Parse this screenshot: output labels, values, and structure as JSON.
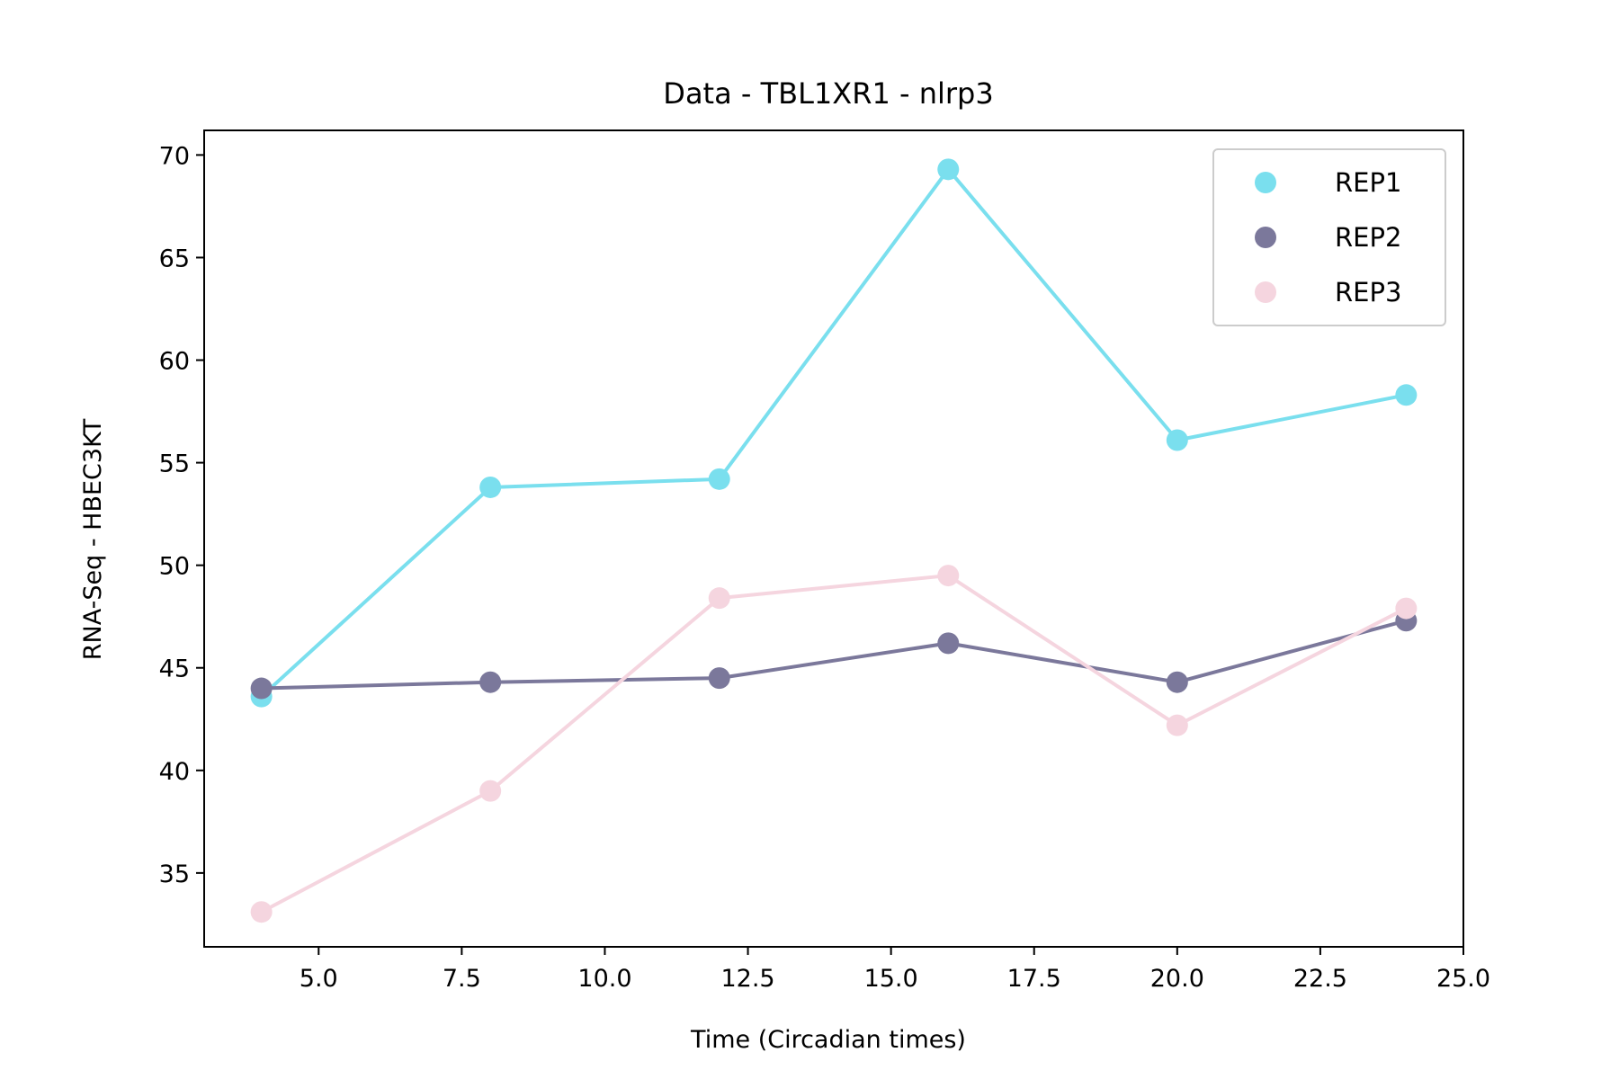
{
  "chart_data": {
    "type": "line",
    "title": "Data - TBL1XR1 - nlrp3",
    "xlabel": "Time (Circadian times)",
    "ylabel": "RNA-Seq - HBEC3KT",
    "xlim": [
      3.0,
      25.0
    ],
    "ylim": [
      31.4,
      71.2
    ],
    "xticks": [
      5.0,
      7.5,
      10.0,
      12.5,
      15.0,
      17.5,
      20.0,
      22.5,
      25.0
    ],
    "xtick_labels": [
      "5.0",
      "7.5",
      "10.0",
      "12.5",
      "15.0",
      "17.5",
      "20.0",
      "22.5",
      "25.0"
    ],
    "yticks": [
      35,
      40,
      45,
      50,
      55,
      60,
      65,
      70
    ],
    "ytick_labels": [
      "35",
      "40",
      "45",
      "50",
      "55",
      "60",
      "65",
      "70"
    ],
    "grid": false,
    "legend_position": "top-right",
    "x": [
      4,
      8,
      12,
      16,
      20,
      24
    ],
    "series": [
      {
        "name": "REP1",
        "color": "#7adfee",
        "values": [
          43.6,
          53.8,
          54.2,
          69.3,
          56.1,
          58.3
        ]
      },
      {
        "name": "REP2",
        "color": "#7b789b",
        "values": [
          44.0,
          44.3,
          44.5,
          46.2,
          44.3,
          47.3
        ]
      },
      {
        "name": "REP3",
        "color": "#f5d5df",
        "values": [
          33.1,
          39.0,
          48.4,
          49.5,
          42.2,
          47.9
        ]
      }
    ]
  }
}
